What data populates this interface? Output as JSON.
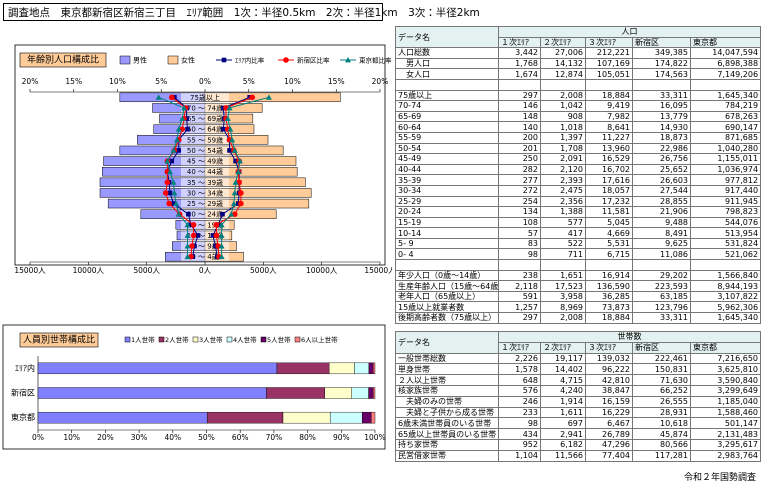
{
  "header": {
    "text": "調査地点　東京都新宿区新宿三丁目　ｴﾘｱ範囲　1次：半径0.5km　2次：半径1km　3次：半径2km"
  },
  "chart_data": [
    {
      "type": "pyramid",
      "title": "年齢別人口構成比",
      "categories": [
        "75歳以上",
        "70 ～ 74歳",
        "65 ～ 69歳",
        "60 ～ 64歳",
        "55 ～ 59歳",
        "50 ～ 54歳",
        "45 ～ 49歳",
        "40 ～ 44歳",
        "35 ～ 39歳",
        "30 ～ 34歳",
        "25 ～ 29歳",
        "20 ～ 24歳",
        "15 ～ 19歳",
        "10 ～ 14歳",
        "5 ～ 9歳",
        "0 ～ 4歳"
      ],
      "series": [
        {
          "name": "男性",
          "color": "#9999ff",
          "side": "male",
          "values": [
            7300,
            4500,
            3900,
            4400,
            5800,
            7300,
            8700,
            8800,
            9000,
            9000,
            8300,
            5500,
            2500,
            2400,
            2800,
            3400
          ]
        },
        {
          "name": "女性",
          "color": "#ffcc99",
          "side": "female",
          "values": [
            11600,
            4900,
            4100,
            4200,
            5400,
            6700,
            7800,
            7900,
            8600,
            9100,
            8900,
            6100,
            2500,
            2300,
            2700,
            3300
          ]
        }
      ],
      "ratio_series": [
        {
          "name": "ｴﾘｱ内比率",
          "color": "#000080",
          "marker": "square",
          "male": [
            3.5,
            2.1,
            2.1,
            2.0,
            3.0,
            3.0,
            3.8,
            4.3,
            4.1,
            4.0,
            3.6,
            1.9,
            1.6,
            0.8,
            1.2,
            1.4
          ],
          "female": [
            5.1,
            2.1,
            2.2,
            2.1,
            2.8,
            2.8,
            3.5,
            3.9,
            3.9,
            3.9,
            3.8,
            2.0,
            1.5,
            0.9,
            1.2,
            1.4
          ]
        },
        {
          "name": "新宿区比率",
          "color": "#ff0000",
          "marker": "circle",
          "male": [
            3.8,
            2.2,
            2.4,
            2.6,
            3.0,
            3.5,
            4.3,
            4.3,
            4.3,
            4.5,
            4.1,
            2.9,
            1.3,
            1.3,
            1.5,
            1.6
          ],
          "female": [
            5.4,
            2.4,
            2.4,
            2.6,
            2.8,
            3.3,
            3.9,
            3.8,
            3.9,
            4.1,
            4.1,
            3.4,
            1.3,
            1.3,
            1.5,
            1.6
          ]
        },
        {
          "name": "東京都比率",
          "color": "#008080",
          "marker": "triangle",
          "male": [
            5.3,
            2.4,
            2.6,
            3.0,
            3.2,
            3.6,
            4.3,
            4.0,
            3.6,
            3.5,
            3.3,
            3.0,
            2.0,
            2.0,
            2.0,
            2.0
          ],
          "female": [
            7.3,
            2.8,
            2.6,
            2.9,
            3.1,
            3.4,
            4.0,
            3.8,
            3.5,
            3.4,
            3.3,
            3.0,
            1.9,
            1.9,
            1.9,
            1.9
          ]
        }
      ],
      "xlim": [
        0,
        15000
      ],
      "xticks_male": [
        {
          "value": 15000,
          "label": "15000人"
        },
        {
          "value": 10000,
          "label": "10000人"
        },
        {
          "value": 5000,
          "label": "5000人"
        },
        {
          "value": 0,
          "label": "0人"
        }
      ],
      "xticks_female": [
        {
          "value": 5000,
          "label": "5000人"
        },
        {
          "value": 10000,
          "label": "10000人"
        },
        {
          "value": 15000,
          "label": "15000人"
        }
      ],
      "x2lim": [
        0,
        20
      ],
      "x2ticks_male": [
        {
          "value": 20,
          "label": "20%"
        },
        {
          "value": 15,
          "label": "15%"
        },
        {
          "value": 10,
          "label": "10%"
        },
        {
          "value": 5,
          "label": "5%"
        },
        {
          "value": 0,
          "label": "0%"
        }
      ],
      "x2ticks_female": [
        {
          "value": 5,
          "label": "5%"
        },
        {
          "value": 10,
          "label": "10%"
        },
        {
          "value": 15,
          "label": "15%"
        },
        {
          "value": 20,
          "label": "20%"
        }
      ]
    },
    {
      "type": "stacked_bar_h",
      "title": "人員別世帯構成比",
      "categories": [
        "ｴﾘｱ内",
        "新宿区",
        "東京都"
      ],
      "series": [
        {
          "name": "1人世帯",
          "color": "#8080ff",
          "values": [
            70.9,
            67.8,
            50.2
          ]
        },
        {
          "name": "2人世帯",
          "color": "#993366",
          "values": [
            15.5,
            17.3,
            22.5
          ]
        },
        {
          "name": "3人世帯",
          "color": "#ffffcc",
          "values": [
            7.5,
            8.0,
            14.0
          ]
        },
        {
          "name": "4人世帯",
          "color": "#ccffff",
          "values": [
            4.3,
            5.0,
            9.5
          ]
        },
        {
          "name": "5人世帯",
          "color": "#660066",
          "values": [
            1.3,
            1.4,
            2.7
          ]
        },
        {
          "name": "6人以上世帯",
          "color": "#ff8080",
          "values": [
            0.5,
            0.5,
            1.1
          ]
        }
      ],
      "xlim": [
        0,
        100
      ],
      "xticks": [
        {
          "value": 0,
          "label": "0%"
        },
        {
          "value": 10,
          "label": "10%"
        },
        {
          "value": 20,
          "label": "20%"
        },
        {
          "value": 30,
          "label": "30%"
        },
        {
          "value": 40,
          "label": "40%"
        },
        {
          "value": 50,
          "label": "50%"
        },
        {
          "value": 60,
          "label": "60%"
        },
        {
          "value": 70,
          "label": "70%"
        },
        {
          "value": 80,
          "label": "80%"
        },
        {
          "value": 90,
          "label": "90%"
        },
        {
          "value": 100,
          "label": "100%"
        }
      ]
    }
  ],
  "population_table": {
    "corner": "データ名",
    "group": "人口",
    "columns": [
      "１次ｴﾘｱ",
      "２次ｴﾘｱ",
      "３次ｴﾘｱ",
      "新宿区",
      "東京都"
    ],
    "sections": [
      [
        {
          "label": "人口総数",
          "values": [
            "3,442",
            "27,006",
            "212,221",
            "349,385",
            "14,047,594"
          ]
        },
        {
          "label": "　男人口",
          "values": [
            "1,768",
            "14,132",
            "107,169",
            "174,822",
            "6,898,388"
          ]
        },
        {
          "label": "　女人口",
          "values": [
            "1,674",
            "12,874",
            "105,051",
            "174,563",
            "7,149,206"
          ]
        }
      ],
      [
        {
          "label": "75歳以上",
          "values": [
            "297",
            "2,008",
            "18,884",
            "33,311",
            "1,645,340"
          ]
        },
        {
          "label": "70-74",
          "values": [
            "146",
            "1,042",
            "9,419",
            "16,095",
            "784,219"
          ]
        },
        {
          "label": "65-69",
          "values": [
            "148",
            "908",
            "7,982",
            "13,779",
            "678,263"
          ]
        },
        {
          "label": "60-64",
          "values": [
            "140",
            "1,018",
            "8,641",
            "14,930",
            "690,147"
          ]
        },
        {
          "label": "55-59",
          "values": [
            "200",
            "1,397",
            "11,227",
            "18,873",
            "871,685"
          ]
        },
        {
          "label": "50-54",
          "values": [
            "201",
            "1,708",
            "13,960",
            "22,986",
            "1,040,280"
          ]
        },
        {
          "label": "45-49",
          "values": [
            "250",
            "2,091",
            "16,529",
            "26,756",
            "1,155,011"
          ]
        },
        {
          "label": "40-44",
          "values": [
            "282",
            "2,120",
            "16,702",
            "25,652",
            "1,036,974"
          ]
        },
        {
          "label": "35-39",
          "values": [
            "277",
            "2,393",
            "17,616",
            "26,603",
            "977,812"
          ]
        },
        {
          "label": "30-34",
          "values": [
            "272",
            "2,475",
            "18,057",
            "27,544",
            "917,440"
          ]
        },
        {
          "label": "25-29",
          "values": [
            "254",
            "2,356",
            "17,232",
            "28,855",
            "911,945"
          ]
        },
        {
          "label": "20-24",
          "values": [
            "134",
            "1,388",
            "11,581",
            "21,906",
            "798,823"
          ]
        },
        {
          "label": "15-19",
          "values": [
            "108",
            "577",
            "5,045",
            "9,488",
            "544,076"
          ]
        },
        {
          "label": "10-14",
          "values": [
            "57",
            "417",
            "4,669",
            "8,491",
            "513,954"
          ]
        },
        {
          "label": "5- 9",
          "values": [
            "83",
            "522",
            "5,531",
            "9,625",
            "531,824"
          ]
        },
        {
          "label": "0- 4",
          "values": [
            "98",
            "711",
            "6,715",
            "11,086",
            "521,062"
          ]
        }
      ],
      [
        {
          "label": "年少人口（0歳～14歳）",
          "values": [
            "238",
            "1,651",
            "16,914",
            "29,202",
            "1,566,840"
          ]
        },
        {
          "label": "生産年齢人口（15歳～64歳）",
          "values": [
            "2,118",
            "17,523",
            "136,590",
            "223,593",
            "8,944,193"
          ]
        },
        {
          "label": "老年人口（65歳以上）",
          "values": [
            "591",
            "3,958",
            "36,285",
            "63,185",
            "3,107,822"
          ]
        },
        {
          "label": "15歳以上就業者数",
          "values": [
            "1,257",
            "8,969",
            "73,873",
            "123,796",
            "5,962,306"
          ]
        },
        {
          "label": "後期高齢者数（75歳以上）",
          "values": [
            "297",
            "2,008",
            "18,884",
            "33,311",
            "1,645,340"
          ]
        }
      ]
    ]
  },
  "household_table": {
    "corner": "データ名",
    "group": "世帯数",
    "columns": [
      "１次ｴﾘｱ",
      "２次ｴﾘｱ",
      "３次ｴﾘｱ",
      "新宿区",
      "東京都"
    ],
    "sections": [
      [
        {
          "label": "一般世帯総数",
          "values": [
            "2,226",
            "19,117",
            "139,032",
            "222,461",
            "7,216,650"
          ]
        },
        {
          "label": "単身世帯",
          "values": [
            "1,578",
            "14,402",
            "96,222",
            "150,831",
            "3,625,810"
          ]
        },
        {
          "label": "２人以上世帯",
          "values": [
            "648",
            "4,715",
            "42,810",
            "71,630",
            "3,590,840"
          ]
        },
        {
          "label": "核家族世帯",
          "values": [
            "576",
            "4,240",
            "38,847",
            "66,252",
            "3,299,649"
          ]
        },
        {
          "label": "　夫婦のみの世帯",
          "values": [
            "246",
            "1,914",
            "16,159",
            "26,555",
            "1,185,040"
          ]
        },
        {
          "label": "　夫婦と子供から成る世帯",
          "values": [
            "233",
            "1,611",
            "16,229",
            "28,931",
            "1,588,460"
          ]
        },
        {
          "label": "6歳未満世帯員のいる世帯",
          "values": [
            "98",
            "697",
            "6,467",
            "10,618",
            "501,147"
          ]
        },
        {
          "label": "65歳以上世帯員のいる世帯",
          "values": [
            "434",
            "2,941",
            "26,789",
            "45,874",
            "2,131,483"
          ]
        },
        {
          "label": "持ち家世帯",
          "values": [
            "952",
            "6,182",
            "47,296",
            "80,566",
            "3,295,617"
          ]
        },
        {
          "label": "民営借家世帯",
          "values": [
            "1,104",
            "11,566",
            "77,404",
            "117,281",
            "2,983,764"
          ]
        }
      ]
    ]
  },
  "footer": "令和２年国勢調査"
}
